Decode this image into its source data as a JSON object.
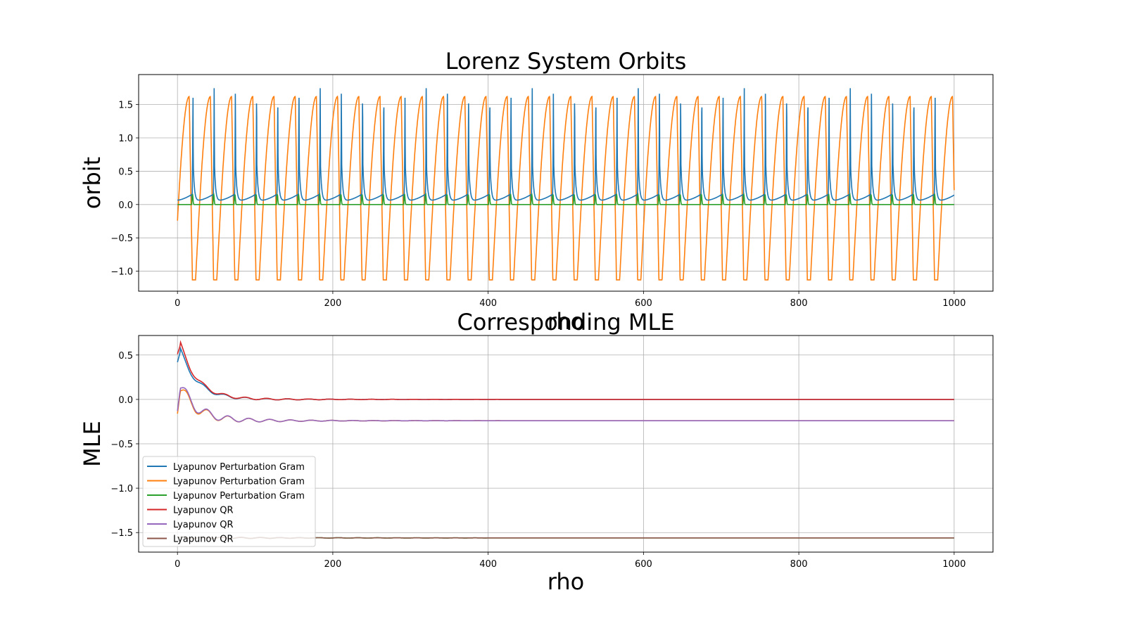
{
  "chart_data": [
    {
      "type": "line",
      "title": "Lorenz System Orbits",
      "xlabel": "rho",
      "ylabel": "orbit",
      "xlim": [
        -50,
        1050
      ],
      "ylim": [
        -1.3,
        1.95
      ],
      "xticks": [
        0,
        200,
        400,
        600,
        800,
        1000
      ],
      "yticks": [
        -1.0,
        -0.5,
        0.0,
        0.5,
        1.0,
        1.5
      ],
      "xtick_labels": [
        "0",
        "200",
        "400",
        "600",
        "800",
        "1000"
      ],
      "ytick_labels": [
        "−1.0",
        "−0.5",
        "0.0",
        "0.5",
        "1.0",
        "1.5"
      ],
      "grid": true,
      "oscillation": {
        "period": 27.3,
        "count": 37
      },
      "series": [
        {
          "color": "#1f77b4",
          "baseline": 0.05,
          "peak": 1.78,
          "description": "spike"
        },
        {
          "color": "#ff7f0e",
          "max": 1.62,
          "min": -1.13,
          "description": "sawtooth"
        },
        {
          "color": "#2ca02c",
          "baseline": 0.0,
          "peak": 0.15,
          "description": "small-spike"
        }
      ]
    },
    {
      "type": "line",
      "title": "Corresponding MLE",
      "xlabel": "rho",
      "ylabel": "MLE",
      "xlim": [
        -50,
        1050
      ],
      "ylim": [
        -1.72,
        0.72
      ],
      "xticks": [
        0,
        200,
        400,
        600,
        800,
        1000
      ],
      "yticks": [
        -1.5,
        -1.0,
        -0.5,
        0.0,
        0.5
      ],
      "xtick_labels": [
        "0",
        "200",
        "400",
        "600",
        "800",
        "1000"
      ],
      "ytick_labels": [
        "−1.5",
        "−1.0",
        "−0.5",
        "0.0",
        "0.5"
      ],
      "grid": true,
      "legend_placement": "lower-left",
      "series": [
        {
          "name": "Lyapunov Perturbation Gram",
          "color": "#1f77b4",
          "start": 0.42,
          "peak": 0.55,
          "final": 0.0
        },
        {
          "name": "Lyapunov Perturbation Gram",
          "color": "#ff7f0e",
          "start": -0.16,
          "peak": 0.12,
          "final": -0.24
        },
        {
          "name": "Lyapunov Perturbation Gram",
          "color": "#2ca02c",
          "start": -1.56,
          "peak": -1.56,
          "final": -1.56
        },
        {
          "name": "Lyapunov QR",
          "color": "#d62728",
          "start": 0.51,
          "peak": 0.62,
          "final": 0.0
        },
        {
          "name": "Lyapunov QR",
          "color": "#9467bd",
          "start": -0.13,
          "peak": 0.15,
          "final": -0.24
        },
        {
          "name": "Lyapunov QR",
          "color": "#8c564b",
          "start": -1.56,
          "peak": -1.56,
          "final": -1.56
        }
      ]
    }
  ]
}
